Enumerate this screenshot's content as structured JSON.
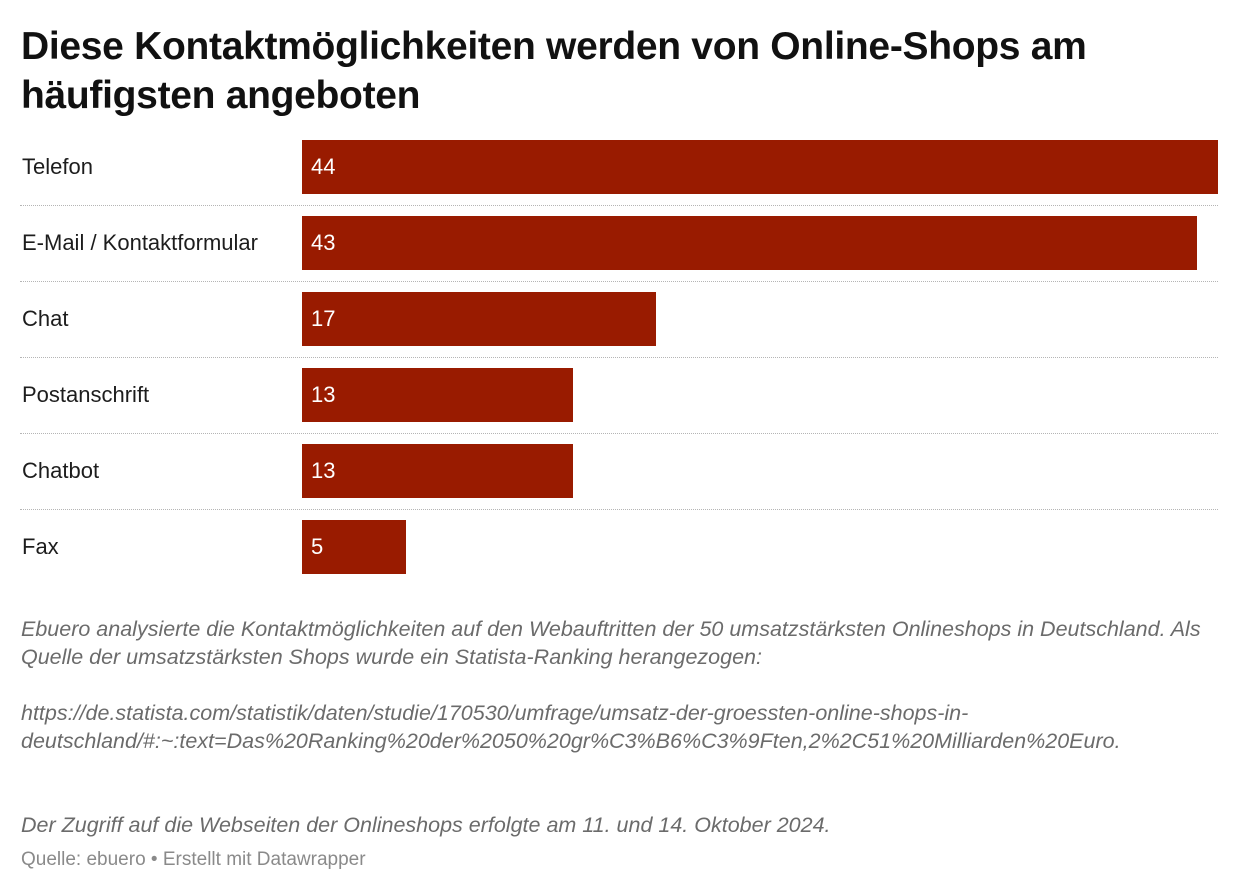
{
  "chart_data": {
    "type": "bar",
    "orientation": "horizontal",
    "title": "Diese Kontaktmöglichkeiten werden von Online-Shops am häufigsten angeboten",
    "categories": [
      "Telefon",
      "E-Mail / Kontaktformular",
      "Chat",
      "Postanschrift",
      "Chatbot",
      "Fax"
    ],
    "values": [
      44,
      43,
      17,
      13,
      13,
      5
    ],
    "value_labels": [
      "44",
      "43",
      "17",
      "13",
      "13",
      "5"
    ],
    "xlim": [
      0,
      44
    ],
    "bar_color": "#991b00",
    "grid": false
  },
  "notes": {
    "description": "Ebuero analysierte die Kontaktmöglichkeiten auf den Webauftritten der 50 umsatzstärksten Onlineshops in Deutschland. Als Quelle der umsatzstärksten Shops wurde ein Statista-Ranking herangezogen:",
    "url": "https://de.statista.com/statistik/daten/studie/170530/umfrage/umsatz-der-groessten-online-shops-in-deutschland/#:~:text=Das%20Ranking%20der%2050%20gr%C3%B6%C3%9Ften,2%2C51%20Milliarden%20Euro.",
    "access": "Der Zugriff auf die Webseiten der Onlineshops erfolgte am 11. und 14. Oktober 2024."
  },
  "footer": {
    "source": "Quelle: ebuero • Erstellt mit Datawrapper"
  }
}
